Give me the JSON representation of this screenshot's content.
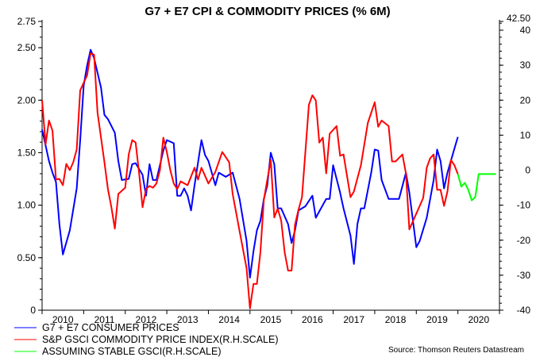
{
  "chart_data": {
    "type": "line",
    "title": "G7 + E7 CPI & COMMODITY PRICES (% 6M)",
    "source": "Source: Thomson Reuters Datastream",
    "x_ticks": [
      "2010",
      "2011",
      "2012",
      "2013",
      "2014",
      "2015",
      "2016",
      "2017",
      "2018",
      "2019",
      "2020"
    ],
    "xlim": [
      "2010-01",
      "2021-01"
    ],
    "left_axis": {
      "ylim": [
        0,
        2.75
      ],
      "tick_labels": [
        "0",
        "0.50",
        "1.00",
        "1.50",
        "2.00",
        "2.50",
        "2.75"
      ],
      "tick_values": [
        0,
        0.5,
        1,
        1.5,
        2,
        2.5,
        2.75
      ]
    },
    "right_axis": {
      "ylim": [
        -40,
        42.5
      ],
      "tick_labels": [
        "-40",
        "-30",
        "-20",
        "-10",
        "0",
        "10",
        "20",
        "30",
        "40",
        "42.50"
      ],
      "tick_values": [
        -40,
        -30,
        -20,
        -10,
        0,
        10,
        20,
        30,
        40,
        42.5
      ]
    },
    "grid": false,
    "legend_position": "bottom-left",
    "series": [
      {
        "name": "G7 + E7 CONSUMER PRICES",
        "color": "#0000ff",
        "axis": "left",
        "points": [
          [
            "2010-01",
            1.72
          ],
          [
            "2010-02",
            1.57
          ],
          [
            "2010-03",
            1.42
          ],
          [
            "2010-04",
            1.31
          ],
          [
            "2010-05",
            1.22
          ],
          [
            "2010-06",
            0.82
          ],
          [
            "2010-07",
            0.53
          ],
          [
            "2010-09",
            0.76
          ],
          [
            "2010-11",
            1.16
          ],
          [
            "2010-12",
            1.62
          ],
          [
            "2011-01",
            2.14
          ],
          [
            "2011-02",
            2.33
          ],
          [
            "2011-03",
            2.48
          ],
          [
            "2011-04",
            2.4
          ],
          [
            "2011-06",
            2.12
          ],
          [
            "2011-07",
            1.86
          ],
          [
            "2011-08",
            1.82
          ],
          [
            "2011-10",
            1.69
          ],
          [
            "2011-11",
            1.42
          ],
          [
            "2011-12",
            1.24
          ],
          [
            "2012-02",
            1.25
          ],
          [
            "2012-03",
            1.39
          ],
          [
            "2012-04",
            1.4
          ],
          [
            "2012-06",
            1.29
          ],
          [
            "2012-07",
            1.09
          ],
          [
            "2012-08",
            1.39
          ],
          [
            "2012-09",
            1.24
          ],
          [
            "2012-10",
            1.24
          ],
          [
            "2012-12",
            1.52
          ],
          [
            "2013-01",
            1.62
          ],
          [
            "2013-03",
            1.59
          ],
          [
            "2013-04",
            1.09
          ],
          [
            "2013-05",
            1.09
          ],
          [
            "2013-06",
            1.16
          ],
          [
            "2013-07",
            1.09
          ],
          [
            "2013-08",
            0.95
          ],
          [
            "2013-09",
            1.19
          ],
          [
            "2013-11",
            1.62
          ],
          [
            "2013-12",
            1.48
          ],
          [
            "2014-01",
            1.42
          ],
          [
            "2014-03",
            1.19
          ],
          [
            "2014-04",
            1.31
          ],
          [
            "2014-06",
            1.27
          ],
          [
            "2014-08",
            1.31
          ],
          [
            "2014-10",
            1.06
          ],
          [
            "2014-12",
            0.66
          ],
          [
            "2015-01",
            0.31
          ],
          [
            "2015-02",
            0.56
          ],
          [
            "2015-03",
            0.76
          ],
          [
            "2015-04",
            0.85
          ],
          [
            "2015-05",
            1.06
          ],
          [
            "2015-06",
            1.19
          ],
          [
            "2015-07",
            1.5
          ],
          [
            "2015-08",
            1.39
          ],
          [
            "2015-09",
            0.97
          ],
          [
            "2015-10",
            0.97
          ],
          [
            "2015-12",
            0.82
          ],
          [
            "2016-01",
            0.64
          ],
          [
            "2016-02",
            0.76
          ],
          [
            "2016-03",
            0.95
          ],
          [
            "2016-05",
            0.99
          ],
          [
            "2016-07",
            1.09
          ],
          [
            "2016-08",
            0.88
          ],
          [
            "2016-11",
            1.06
          ],
          [
            "2016-12",
            1.06
          ],
          [
            "2017-01",
            1.38
          ],
          [
            "2017-03",
            1.12
          ],
          [
            "2017-04",
            0.97
          ],
          [
            "2017-06",
            0.71
          ],
          [
            "2017-07",
            0.44
          ],
          [
            "2017-08",
            0.82
          ],
          [
            "2017-09",
            0.97
          ],
          [
            "2017-10",
            0.97
          ],
          [
            "2017-12",
            1.31
          ],
          [
            "2018-01",
            1.53
          ],
          [
            "2018-02",
            1.52
          ],
          [
            "2018-03",
            1.24
          ],
          [
            "2018-05",
            1.06
          ],
          [
            "2018-08",
            1.06
          ],
          [
            "2018-10",
            1.31
          ],
          [
            "2018-11",
            1.12
          ],
          [
            "2019-01",
            0.6
          ],
          [
            "2019-02",
            0.66
          ],
          [
            "2019-04",
            0.88
          ],
          [
            "2019-06",
            1.24
          ],
          [
            "2019-07",
            1.53
          ],
          [
            "2019-08",
            1.42
          ],
          [
            "2019-09",
            1.16
          ],
          [
            "2019-10",
            1.31
          ],
          [
            "2019-12",
            1.54
          ],
          [
            "2020-01",
            1.65
          ]
        ]
      },
      {
        "name": "S&P GSCI COMMODITY PRICE INDEX(R.H.SCALE)",
        "color": "#ff0000",
        "axis": "right",
        "points": [
          [
            "2010-01",
            20
          ],
          [
            "2010-02",
            7.4
          ],
          [
            "2010-03",
            14.2
          ],
          [
            "2010-04",
            11.3
          ],
          [
            "2010-05",
            -2.7
          ],
          [
            "2010-06",
            -2.5
          ],
          [
            "2010-07",
            -4.3
          ],
          [
            "2010-08",
            1.8
          ],
          [
            "2010-09",
            0
          ],
          [
            "2010-10",
            2.3
          ],
          [
            "2010-11",
            5.9
          ],
          [
            "2010-12",
            22.8
          ],
          [
            "2011-02",
            27.1
          ],
          [
            "2011-03",
            33.4
          ],
          [
            "2011-04",
            33
          ],
          [
            "2011-05",
            16.5
          ],
          [
            "2011-06",
            9.3
          ],
          [
            "2011-07",
            2.3
          ],
          [
            "2011-08",
            -5.4
          ],
          [
            "2011-09",
            -10.6
          ],
          [
            "2011-10",
            -16.7
          ],
          [
            "2011-11",
            -6.8
          ],
          [
            "2012-01",
            -5
          ],
          [
            "2012-02",
            4.5
          ],
          [
            "2012-03",
            8.6
          ],
          [
            "2012-04",
            7.9
          ],
          [
            "2012-05",
            -0.9
          ],
          [
            "2012-06",
            -10.6
          ],
          [
            "2012-07",
            -5.4
          ],
          [
            "2012-08",
            -4.5
          ],
          [
            "2012-09",
            -5
          ],
          [
            "2012-10",
            -3.8
          ],
          [
            "2012-11",
            0
          ],
          [
            "2012-12",
            9.3
          ],
          [
            "2013-01",
            5.2
          ],
          [
            "2013-02",
            0
          ],
          [
            "2013-03",
            -3.8
          ],
          [
            "2013-04",
            -5.4
          ],
          [
            "2013-05",
            -3.2
          ],
          [
            "2013-07",
            -4.3
          ],
          [
            "2013-09",
            0.7
          ],
          [
            "2013-10",
            -2.7
          ],
          [
            "2013-11",
            0.7
          ],
          [
            "2014-01",
            -3.8
          ],
          [
            "2014-03",
            -0.5
          ],
          [
            "2014-05",
            5.2
          ],
          [
            "2014-07",
            2.3
          ],
          [
            "2014-08",
            -6.8
          ],
          [
            "2014-10",
            -17.4
          ],
          [
            "2014-12",
            -28
          ],
          [
            "2015-01",
            -39.5
          ],
          [
            "2015-02",
            -32.5
          ],
          [
            "2015-03",
            -32.5
          ],
          [
            "2015-04",
            -23.5
          ],
          [
            "2015-05",
            -8.4
          ],
          [
            "2015-07",
            2.9
          ],
          [
            "2015-08",
            -13.5
          ],
          [
            "2015-09",
            -11
          ],
          [
            "2015-10",
            -14.4
          ],
          [
            "2015-11",
            -23.5
          ],
          [
            "2015-12",
            -28.7
          ],
          [
            "2016-01",
            -28.7
          ],
          [
            "2016-02",
            -15.6
          ],
          [
            "2016-03",
            -11.3
          ],
          [
            "2016-04",
            -7.7
          ],
          [
            "2016-06",
            18.7
          ],
          [
            "2016-07",
            21.4
          ],
          [
            "2016-08",
            19.9
          ],
          [
            "2016-09",
            7.9
          ],
          [
            "2016-10",
            9.3
          ],
          [
            "2016-11",
            -0.9
          ],
          [
            "2016-12",
            10.4
          ],
          [
            "2017-02",
            12.6
          ],
          [
            "2017-03",
            4.1
          ],
          [
            "2017-04",
            4.5
          ],
          [
            "2017-06",
            -7.7
          ],
          [
            "2017-07",
            -6.1
          ],
          [
            "2017-09",
            1.4
          ],
          [
            "2017-11",
            13.5
          ],
          [
            "2018-01",
            19.4
          ],
          [
            "2018-02",
            12.4
          ],
          [
            "2018-03",
            14.2
          ],
          [
            "2018-05",
            12.6
          ],
          [
            "2018-06",
            2.5
          ],
          [
            "2018-07",
            2.5
          ],
          [
            "2018-09",
            4.5
          ],
          [
            "2018-10",
            -0.9
          ],
          [
            "2018-11",
            -16.9
          ],
          [
            "2019-01",
            -12.4
          ],
          [
            "2019-03",
            -7.9
          ],
          [
            "2019-04",
            0.7
          ],
          [
            "2019-05",
            3.4
          ],
          [
            "2019-06",
            4.5
          ],
          [
            "2019-07",
            -5.6
          ],
          [
            "2019-08",
            -5.6
          ],
          [
            "2019-09",
            -10.2
          ],
          [
            "2019-10",
            -6.1
          ],
          [
            "2019-11",
            2.9
          ],
          [
            "2019-12",
            1.4
          ],
          [
            "2020-01",
            -1.1
          ]
        ]
      },
      {
        "name": "ASSUMING STABLE GSCI(R.H.SCALE)",
        "color": "#00ff00",
        "axis": "right",
        "points": [
          [
            "2020-01",
            -1.1
          ],
          [
            "2020-02",
            -4.7
          ],
          [
            "2020-03",
            -3.6
          ],
          [
            "2020-04",
            -5.6
          ],
          [
            "2020-05",
            -8.6
          ],
          [
            "2020-06",
            -7.7
          ],
          [
            "2020-07",
            -1.1
          ],
          [
            "2020-12",
            -1.1
          ]
        ]
      }
    ]
  }
}
